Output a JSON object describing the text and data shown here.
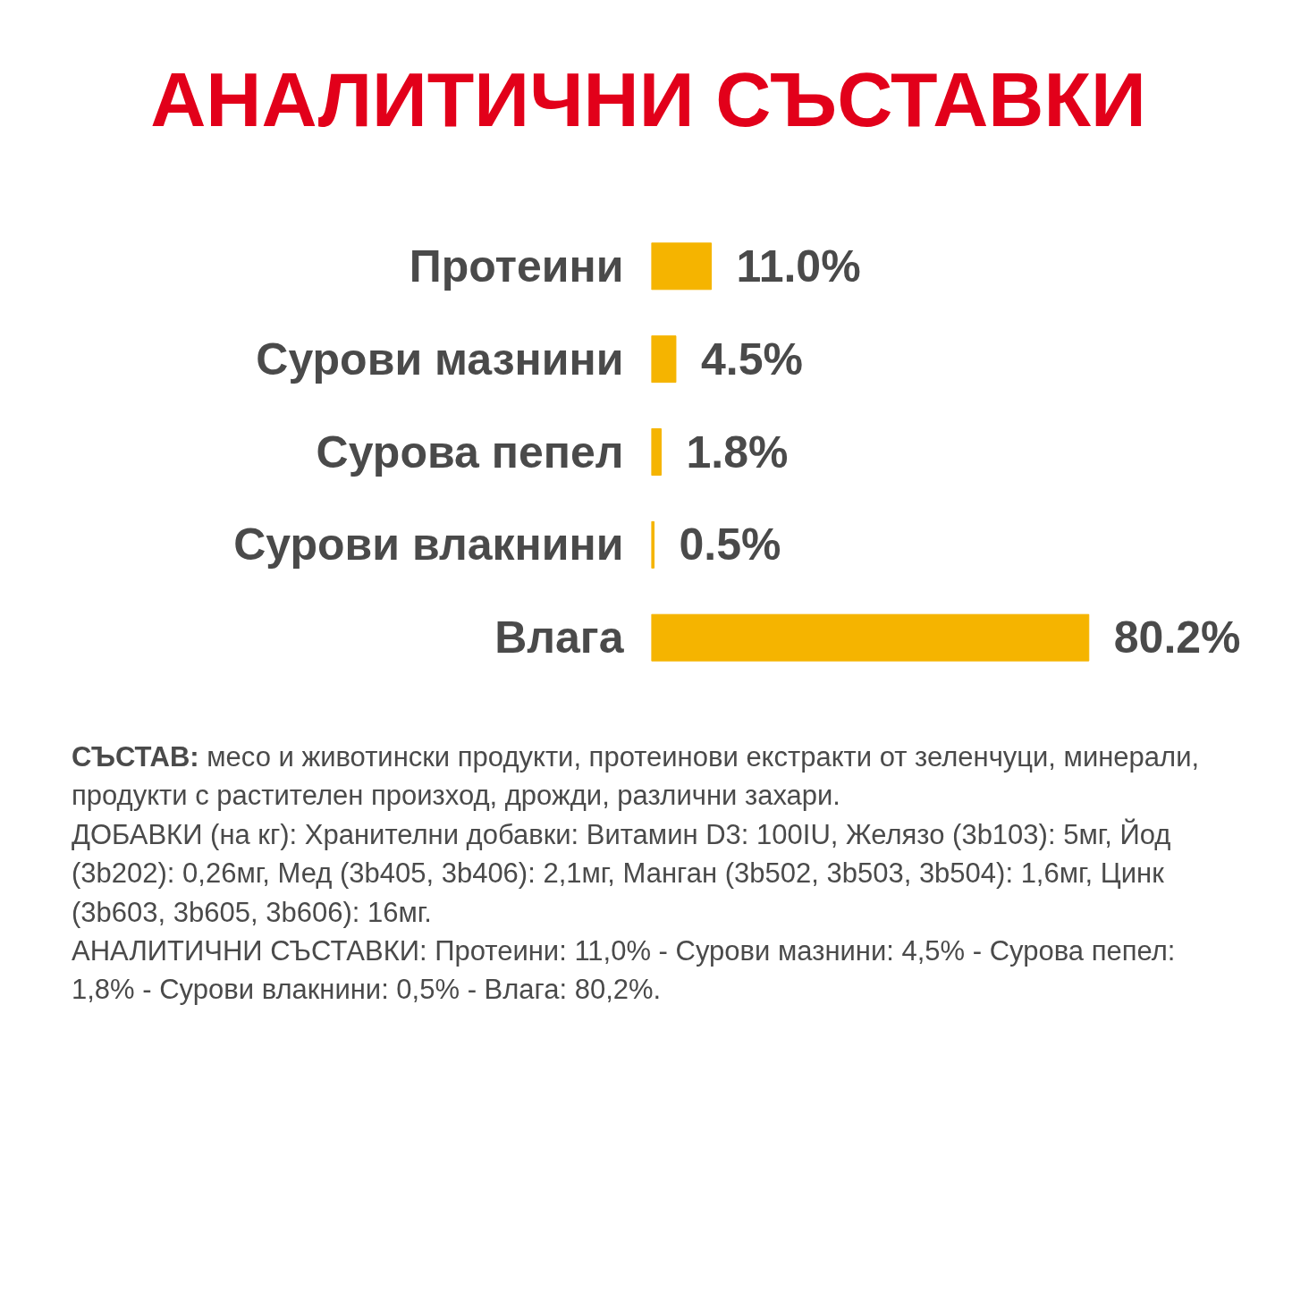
{
  "chart_data": {
    "type": "bar",
    "orientation": "horizontal",
    "title": "АНАЛИТИЧНИ СЪСТАВКИ",
    "categories": [
      "Протеини",
      "Сурови мазнини",
      "Сурова пепел",
      "Сурови влакнини",
      "Влага"
    ],
    "values": [
      11.0,
      4.5,
      1.8,
      0.5,
      80.2
    ],
    "value_labels": [
      "11.0%",
      "4.5%",
      "1.8%",
      "0.5%",
      "80.2%"
    ],
    "color": "#f5b400",
    "annotations": [
      "СЪСТАВ: месо и животински продукти, протеинови екстракти от зеленчуци, минерали, продукти с растителен произход, дрожди, различни захари.",
      "ДОБАВКИ (на кг): Хранителни добавки: Витамин D3: 100IU, Желязо (3b103): 5мг, Йод (3b202): 0,26мг, Мед (3b405, 3b406): 2,1мг, Манган (3b502, 3b503, 3b504): 1,6мг, Цинк (3b603, 3b605, 3b606): 16мг.",
      "АНАЛИТИЧНИ СЪСТАВКИ: Протеини: 11,0% - Сурови мазнини: 4,5% - Сурова пепел: 1,8% - Сурови влакнини: 0,5% - Влага: 80,2%."
    ]
  }
}
